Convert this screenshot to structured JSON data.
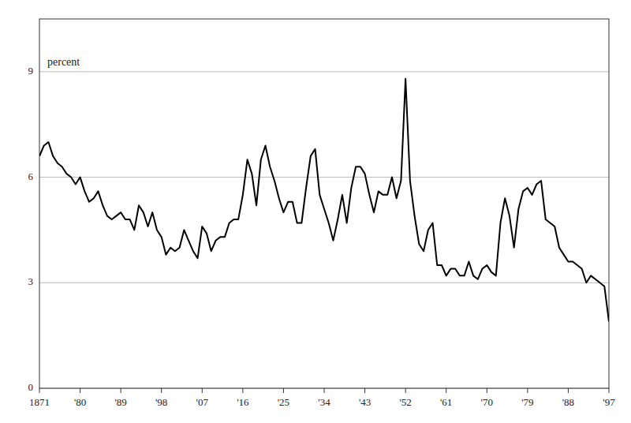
{
  "chart_data": {
    "type": "line",
    "ylabel": "percent",
    "x": [
      1871,
      1872,
      1873,
      1874,
      1875,
      1876,
      1877,
      1878,
      1879,
      1880,
      1881,
      1882,
      1883,
      1884,
      1885,
      1886,
      1887,
      1888,
      1889,
      1890,
      1891,
      1892,
      1893,
      1894,
      1895,
      1896,
      1897,
      1898,
      1899,
      1900,
      1901,
      1902,
      1903,
      1904,
      1905,
      1906,
      1907,
      1908,
      1909,
      1910,
      1911,
      1912,
      1913,
      1914,
      1915,
      1916,
      1917,
      1918,
      1919,
      1920,
      1921,
      1922,
      1923,
      1924,
      1925,
      1926,
      1927,
      1928,
      1929,
      1930,
      1931,
      1932,
      1933,
      1934,
      1935,
      1936,
      1937,
      1938,
      1939,
      1940,
      1941,
      1942,
      1943,
      1944,
      1945,
      1946,
      1947,
      1948,
      1949,
      1950,
      1951,
      1952,
      1953,
      1954,
      1955,
      1956,
      1957,
      1958,
      1959,
      1960,
      1961,
      1962,
      1963,
      1964,
      1965,
      1966,
      1967,
      1968,
      1969,
      1970,
      1971,
      1972,
      1973,
      1974,
      1975,
      1976,
      1977,
      1978,
      1979,
      1980,
      1981,
      1982,
      1983,
      1984,
      1985,
      1986,
      1987,
      1988,
      1989,
      1990,
      1991,
      1992,
      1993,
      1994,
      1995,
      1996,
      1997
    ],
    "values": [
      6.6,
      6.9,
      7.0,
      6.6,
      6.4,
      6.3,
      6.1,
      6.0,
      5.8,
      6.0,
      5.6,
      5.3,
      5.4,
      5.6,
      5.2,
      4.9,
      4.8,
      4.9,
      5.0,
      4.8,
      4.8,
      4.5,
      5.2,
      5.0,
      4.6,
      5.0,
      4.5,
      4.3,
      3.8,
      4.0,
      3.9,
      4.0,
      4.5,
      4.2,
      3.9,
      3.7,
      4.6,
      4.4,
      3.9,
      4.2,
      4.3,
      4.3,
      4.7,
      4.8,
      4.8,
      5.5,
      6.5,
      6.1,
      5.2,
      6.5,
      6.9,
      6.3,
      5.9,
      5.4,
      5.0,
      5.3,
      5.3,
      4.7,
      4.7,
      5.7,
      6.6,
      6.8,
      5.5,
      5.1,
      4.7,
      4.2,
      4.8,
      5.5,
      4.7,
      5.7,
      6.3,
      6.3,
      6.1,
      5.5,
      5.0,
      5.6,
      5.5,
      5.5,
      6.0,
      5.4,
      5.9,
      8.8,
      5.9,
      4.9,
      4.1,
      3.9,
      4.5,
      4.7,
      3.5,
      3.5,
      3.2,
      3.4,
      3.4,
      3.2,
      3.2,
      3.6,
      3.2,
      3.1,
      3.4,
      3.5,
      3.3,
      3.2,
      4.7,
      5.4,
      4.9,
      4.0,
      5.1,
      5.6,
      5.7,
      5.5,
      5.8,
      5.9,
      4.8,
      4.7,
      4.6,
      4.0,
      3.8,
      3.6,
      3.6,
      3.5,
      3.4,
      3.0,
      3.2,
      3.1,
      3.0,
      2.9,
      1.9
    ],
    "color": "#000000",
    "xlim": [
      1871,
      1997
    ],
    "ylim": [
      0,
      10.5
    ],
    "yticks": [
      0,
      3,
      6,
      9
    ],
    "xticks": [
      1871,
      {
        "value": 1880,
        "label": "'80"
      },
      {
        "value": 1889,
        "label": "'89"
      },
      {
        "value": 1898,
        "label": "'98"
      },
      {
        "value": 1907,
        "label": "'07"
      },
      {
        "value": 1916,
        "label": "'16"
      },
      {
        "value": 1925,
        "label": "'25"
      },
      {
        "value": 1934,
        "label": "'34"
      },
      {
        "value": 1943,
        "label": "'43"
      },
      {
        "value": 1952,
        "label": "'52"
      },
      {
        "value": 1961,
        "label": "'61"
      },
      {
        "value": 1970,
        "label": "'70"
      },
      {
        "value": 1979,
        "label": "'79"
      },
      {
        "value": 1988,
        "label": "'88"
      },
      {
        "value": 1997,
        "label": "'97"
      }
    ],
    "grid": true
  }
}
